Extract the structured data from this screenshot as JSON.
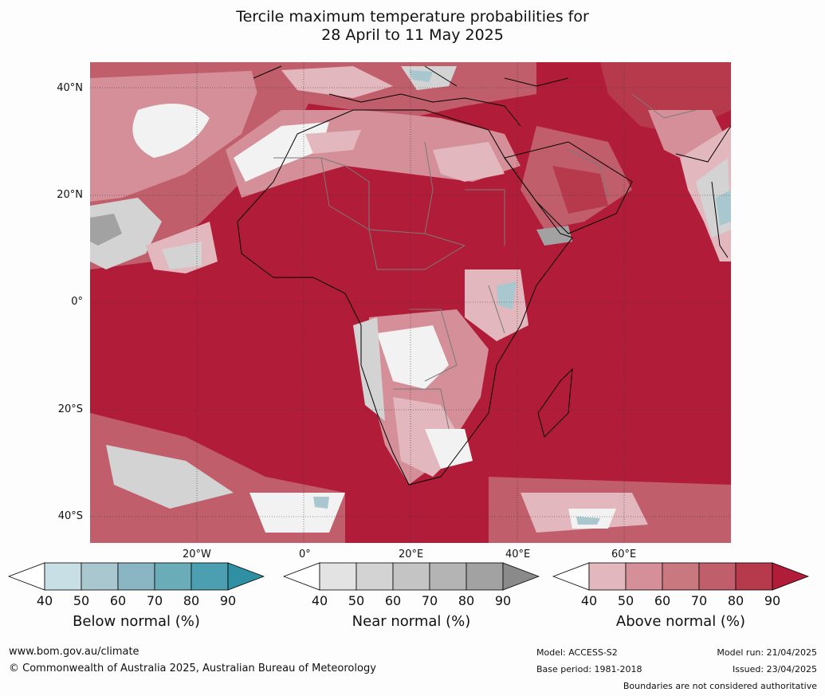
{
  "title_line1": "Tercile maximum temperature probabilities for",
  "title_line2": "28 April to 11 May 2025",
  "lat_labels": [
    "40°N",
    "20°N",
    "0°",
    "20°S",
    "40°S"
  ],
  "lon_labels": [
    "20°W",
    "0°",
    "20°E",
    "40°E",
    "60°E"
  ],
  "colorbars": [
    {
      "title": "Below normal (%)",
      "ticks": [
        "40",
        "50",
        "60",
        "70",
        "80",
        "90"
      ],
      "colors": [
        "#ffffff",
        "#c8dfe5",
        "#a9c7cf",
        "#8ab5c2",
        "#6aacb8",
        "#4b9fb0",
        "#2f8fa3"
      ]
    },
    {
      "title": "Near normal (%)",
      "ticks": [
        "40",
        "50",
        "60",
        "70",
        "80",
        "90"
      ],
      "colors": [
        "#ffffff",
        "#e3e3e3",
        "#d3d3d3",
        "#c4c4c4",
        "#b4b4b4",
        "#a2a2a2",
        "#8a8a8a"
      ]
    },
    {
      "title": "Above normal (%)",
      "ticks": [
        "40",
        "50",
        "60",
        "70",
        "80",
        "90"
      ],
      "colors": [
        "#ffffff",
        "#e2b7bd",
        "#d48f98",
        "#c97880",
        "#c15e6b",
        "#b63a4b",
        "#b11d38"
      ]
    }
  ],
  "footer": {
    "website": "www.bom.gov.au/climate",
    "copyright": "© Commonwealth of Australia 2025, Australian Bureau of Meteorology",
    "model": "Model: ACCESS-S2",
    "base_period": "Base period: 1981-2018",
    "model_run": "Model run: 21/04/2025",
    "issued": "Issued: 23/04/2025",
    "boundaries": "Boundaries are not considered authoritative"
  },
  "map_colors": {
    "ocean_above": "#b11d38",
    "above_90": "#b11d38",
    "above_80": "#b63a4b",
    "above_70": "#c15e6b",
    "above_60": "#c97880",
    "above_50": "#d48f98",
    "above_40": "#e2b7bd",
    "neutral": "#f2f2f2",
    "near_50": "#d3d3d3",
    "near_70": "#a2a2a2",
    "below_60": "#a9c7cf",
    "below_80": "#6aacb8"
  }
}
